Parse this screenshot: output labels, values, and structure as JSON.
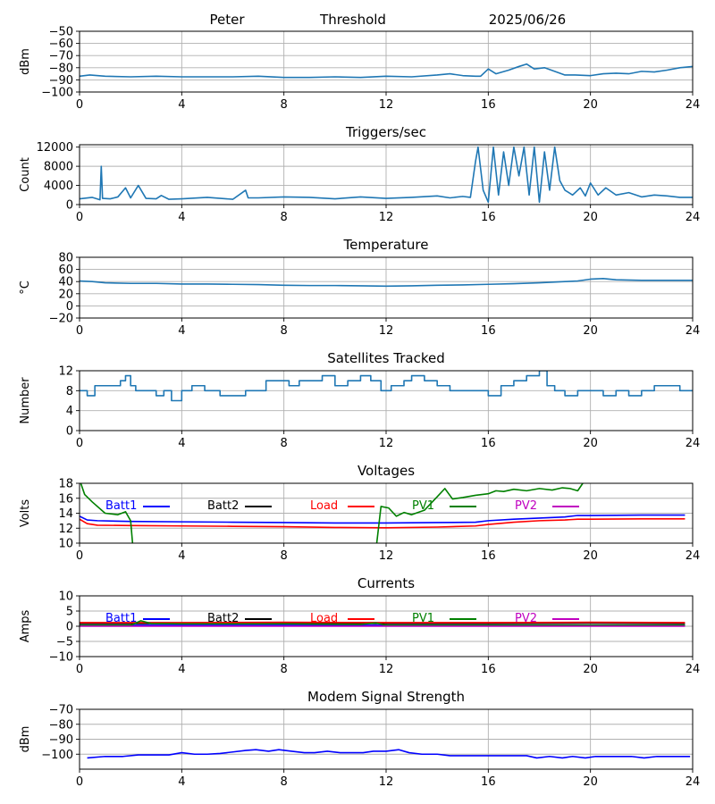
{
  "header": {
    "station": "Peter",
    "mode": "Threshold",
    "date": "2025/06/26"
  },
  "colors": {
    "series": "#1f77b4",
    "grid": "#b0b0b0"
  },
  "xaxis": {
    "range": [
      0,
      24
    ],
    "ticks": [
      "0",
      "4",
      "8",
      "12",
      "16",
      "20",
      "24"
    ]
  },
  "chart_data": [
    {
      "type": "line",
      "title": "",
      "ylabel": "dBm",
      "ylim": [
        -100,
        -50
      ],
      "yticks": [
        -100,
        -90,
        -80,
        -70,
        -60,
        -50
      ],
      "ytick_labels": [
        "−100",
        "−90",
        "−80",
        "−70",
        "−60",
        "−50"
      ],
      "series": [
        {
          "color": "#1f77b4",
          "x": [
            0,
            0.4,
            1,
            2,
            3,
            4,
            5,
            6,
            7,
            8,
            9,
            10,
            11,
            12,
            13,
            14,
            14.5,
            15,
            15.5,
            15.7,
            16,
            16.3,
            16.8,
            17.2,
            17.5,
            17.8,
            18.2,
            18.6,
            19,
            19.4,
            20,
            20.5,
            21,
            21.5,
            22,
            22.5,
            23,
            23.5,
            24
          ],
          "y": [
            -87,
            -86,
            -87,
            -87.5,
            -87,
            -87.5,
            -87.5,
            -87.5,
            -87,
            -88,
            -88,
            -87.5,
            -88,
            -87,
            -87.5,
            -86,
            -85,
            -86.5,
            -87,
            -87,
            -81,
            -85,
            -82,
            -79,
            -77,
            -81,
            -80,
            -83,
            -86,
            -86,
            -86.5,
            -85,
            -84.5,
            -85,
            -83,
            -83.5,
            -82,
            -80,
            -79
          ]
        }
      ]
    },
    {
      "type": "line",
      "title": "Triggers/sec",
      "ylabel": "Count",
      "ylim": [
        0,
        12500
      ],
      "yticks": [
        0,
        4000,
        8000,
        12000
      ],
      "ytick_labels": [
        "0",
        "4000",
        "8000",
        "12000"
      ],
      "series": [
        {
          "color": "#1f77b4",
          "x": [
            0,
            0.5,
            0.8,
            0.85,
            0.9,
            1.2,
            1.5,
            1.8,
            2.0,
            2.3,
            2.6,
            3,
            3.2,
            3.5,
            4,
            5,
            6,
            6.5,
            6.6,
            7,
            8,
            9,
            10,
            11,
            12,
            13,
            14,
            14.5,
            15,
            15.3,
            15.5,
            15.6,
            15.8,
            16,
            16.2,
            16.4,
            16.6,
            16.8,
            17,
            17.2,
            17.4,
            17.6,
            17.8,
            18,
            18.2,
            18.4,
            18.6,
            18.8,
            19,
            19.3,
            19.6,
            19.8,
            20,
            20.3,
            20.6,
            21,
            21.5,
            22,
            22.5,
            23,
            23.5,
            24
          ],
          "y": [
            1200,
            1500,
            1000,
            8000,
            1300,
            1200,
            1600,
            3500,
            1400,
            4000,
            1300,
            1200,
            1900,
            1100,
            1200,
            1500,
            1100,
            3000,
            1400,
            1400,
            1600,
            1500,
            1200,
            1600,
            1300,
            1500,
            1800,
            1400,
            1700,
            1500,
            9000,
            12000,
            3000,
            500,
            12000,
            2000,
            11000,
            4000,
            12000,
            6000,
            12000,
            2000,
            12000,
            500,
            11000,
            3000,
            12000,
            5000,
            3000,
            2000,
            3500,
            1800,
            4500,
            2000,
            3500,
            2000,
            2500,
            1600,
            2000,
            1800,
            1500,
            1500
          ]
        }
      ]
    },
    {
      "type": "line",
      "title": "Temperature",
      "ylabel": "°C",
      "ylim": [
        -20,
        80
      ],
      "yticks": [
        -20,
        0,
        20,
        40,
        60,
        80
      ],
      "ytick_labels": [
        "−20",
        "0",
        "20",
        "40",
        "60",
        "80"
      ],
      "series": [
        {
          "color": "#1f77b4",
          "x": [
            0,
            0.5,
            1,
            2,
            3,
            4,
            5,
            6,
            7,
            8,
            9,
            10,
            11,
            12,
            13,
            14,
            15,
            16,
            17,
            18,
            19,
            19.5,
            20,
            20.5,
            21,
            22,
            23,
            24
          ],
          "y": [
            41,
            40,
            38,
            37,
            37,
            36,
            36,
            35.5,
            35,
            34,
            33.5,
            33.5,
            33,
            32.5,
            33,
            34,
            34.5,
            35.5,
            36.5,
            38,
            40,
            41,
            44,
            45,
            43,
            42,
            42,
            42
          ]
        }
      ]
    },
    {
      "type": "line",
      "title": "Satellites Tracked",
      "ylabel": "Number",
      "ylim": [
        0,
        12
      ],
      "yticks": [
        0,
        4,
        8,
        12
      ],
      "ytick_labels": [
        "0",
        "4",
        "8",
        "12"
      ],
      "series": [
        {
          "color": "#1f77b4",
          "step": true,
          "x": [
            0,
            0.3,
            0.6,
            1.2,
            1.6,
            1.8,
            2.0,
            2.2,
            2.6,
            3.0,
            3.3,
            3.6,
            4.0,
            4.4,
            4.9,
            5.5,
            6.0,
            6.5,
            6.9,
            7.3,
            7.8,
            8.2,
            8.6,
            9.0,
            9.5,
            10.0,
            10.5,
            11.0,
            11.4,
            11.8,
            12.2,
            12.7,
            13.0,
            13.5,
            14.0,
            14.5,
            15.0,
            15.5,
            16.0,
            16.5,
            17.0,
            17.5,
            18.0,
            18.3,
            18.6,
            19.0,
            19.5,
            20.0,
            20.5,
            21.0,
            21.5,
            22.0,
            22.5,
            23.0,
            23.5,
            24
          ],
          "y": [
            8,
            7,
            9,
            9,
            10,
            11,
            9,
            8,
            8,
            7,
            8,
            6,
            8,
            9,
            8,
            7,
            7,
            8,
            8,
            10,
            10,
            9,
            10,
            10,
            11,
            9,
            10,
            11,
            10,
            8,
            9,
            10,
            11,
            10,
            9,
            8,
            8,
            8,
            7,
            9,
            10,
            11,
            12,
            9,
            8,
            7,
            8,
            8,
            7,
            8,
            7,
            8,
            9,
            9,
            8,
            8
          ]
        }
      ]
    },
    {
      "type": "line",
      "title": "Voltages",
      "ylabel": "Volts",
      "ylim": [
        10,
        18
      ],
      "yticks": [
        10,
        12,
        14,
        16,
        18
      ],
      "ytick_labels": [
        "10",
        "12",
        "14",
        "16",
        "18"
      ],
      "legend": [
        "Batt1",
        "Batt2",
        "Load",
        "PV1",
        "PV2"
      ],
      "series": [
        {
          "name": "Batt1",
          "color": "#0000ff",
          "x": [
            0,
            0.3,
            0.7,
            2,
            4,
            6,
            8,
            10,
            12,
            14,
            15.5,
            16,
            17,
            18,
            19,
            19.5,
            20,
            22,
            23.7
          ],
          "y": [
            13.6,
            13.1,
            13.0,
            12.9,
            12.85,
            12.8,
            12.75,
            12.7,
            12.7,
            12.75,
            12.8,
            13.0,
            13.2,
            13.35,
            13.5,
            13.7,
            13.7,
            13.75,
            13.75
          ]
        },
        {
          "name": "Batt2",
          "color": "#000000",
          "x": [],
          "y": []
        },
        {
          "name": "Load",
          "color": "#ff0000",
          "x": [
            0,
            0.3,
            0.7,
            2,
            4,
            6,
            8,
            10,
            12,
            14,
            15.5,
            16,
            17,
            18,
            19,
            19.5,
            20,
            22,
            23.7
          ],
          "y": [
            13.2,
            12.6,
            12.4,
            12.35,
            12.3,
            12.25,
            12.2,
            12.1,
            12.05,
            12.15,
            12.3,
            12.5,
            12.8,
            13.0,
            13.1,
            13.2,
            13.2,
            13.25,
            13.25
          ]
        },
        {
          "name": "PV1",
          "color": "#008000",
          "x": [
            0,
            0.2,
            0.5,
            1.0,
            1.5,
            1.8,
            2.0,
            2.1,
            2.3,
            11.6,
            11.8,
            12.1,
            12.4,
            12.7,
            13.0,
            13.5,
            14.0,
            14.3,
            14.6,
            15.0,
            15.5,
            16.0,
            16.3,
            16.6,
            17.0,
            17.5,
            18.0,
            18.5,
            18.9,
            19.2,
            19.5,
            19.8
          ],
          "y": [
            18.5,
            16.5,
            15.5,
            14.0,
            13.8,
            14.2,
            13.0,
            9.0,
            9.0,
            9.0,
            14.9,
            14.7,
            13.6,
            14.1,
            13.8,
            14.4,
            16.2,
            17.3,
            15.9,
            16.1,
            16.4,
            16.6,
            17.0,
            16.9,
            17.2,
            17.0,
            17.3,
            17.1,
            17.4,
            17.3,
            17.0,
            18.5
          ]
        },
        {
          "name": "PV2",
          "color": "#c000c0",
          "x": [],
          "y": []
        }
      ]
    },
    {
      "type": "line",
      "title": "Currents",
      "ylabel": "Amps",
      "ylim": [
        -10,
        10
      ],
      "yticks": [
        -10,
        -5,
        0,
        5,
        10
      ],
      "ytick_labels": [
        "−10",
        "−5",
        "0",
        "5",
        "10"
      ],
      "legend": [
        "Batt1",
        "Batt2",
        "Load",
        "PV1",
        "PV2"
      ],
      "series": [
        {
          "name": "Batt1",
          "color": "#0000ff",
          "x": [
            0,
            23.7
          ],
          "y": [
            0.3,
            0.3
          ]
        },
        {
          "name": "Batt2",
          "color": "#000000",
          "x": [
            0,
            4,
            8,
            12,
            16,
            20,
            23.7
          ],
          "y": [
            0.9,
            0.9,
            1.0,
            0.9,
            0.9,
            1.0,
            0.9
          ]
        },
        {
          "name": "Load",
          "color": "#ff0000",
          "x": [
            0,
            4,
            8,
            12,
            16,
            20,
            23.7
          ],
          "y": [
            1.2,
            1.2,
            1.3,
            1.2,
            1.2,
            1.3,
            1.2
          ]
        },
        {
          "name": "PV1",
          "color": "#008000",
          "x": [
            0,
            2.0,
            2.4,
            2.8,
            4,
            8,
            11,
            11.6,
            12,
            16,
            20,
            23.7
          ],
          "y": [
            0.3,
            0.3,
            1.8,
            0.9,
            0.8,
            0.8,
            0.6,
            1.1,
            0.3,
            0.3,
            0.3,
            0.3
          ]
        },
        {
          "name": "PV2",
          "color": "#c000c0",
          "x": [
            0,
            23.7
          ],
          "y": [
            0.0,
            0.0
          ]
        }
      ]
    },
    {
      "type": "line",
      "title": "Modem Signal Strength",
      "ylabel": "dBm",
      "ylim": [
        -110,
        -70
      ],
      "yticks": [
        -100,
        -90,
        -80,
        -70
      ],
      "ytick_labels": [
        "−100",
        "−90",
        "−80",
        "−70"
      ],
      "series": [
        {
          "color": "#0000ff",
          "x": [
            0.3,
            1,
            1.7,
            2.3,
            3,
            3.5,
            4,
            4.5,
            5,
            5.5,
            6,
            6.5,
            6.9,
            7.4,
            7.8,
            8.3,
            8.8,
            9.2,
            9.7,
            10.2,
            10.6,
            11.1,
            11.5,
            12,
            12.5,
            12.9,
            13.4,
            14,
            14.5,
            15,
            15.5,
            16,
            16.5,
            17,
            17.5,
            17.9,
            18.4,
            18.9,
            19.3,
            19.8,
            20.2,
            20.7,
            21.2,
            21.6,
            22.1,
            22.6,
            23,
            23.5,
            23.9
          ],
          "y": [
            -102.5,
            -101.5,
            -101.5,
            -100.5,
            -100.5,
            -100.5,
            -99,
            -100,
            -100,
            -99.5,
            -98.5,
            -97.5,
            -97,
            -98,
            -97,
            -98,
            -99,
            -99,
            -98,
            -99,
            -99,
            -99,
            -98,
            -98,
            -97,
            -99,
            -100,
            -100,
            -101,
            -101,
            -101,
            -101,
            -101,
            -101,
            -101,
            -102.5,
            -101.5,
            -102.5,
            -101.5,
            -102.5,
            -101.5,
            -101.5,
            -101.5,
            -101.5,
            -102.5,
            -101.5,
            -101.5,
            -101.5,
            -101.5
          ]
        }
      ]
    }
  ]
}
